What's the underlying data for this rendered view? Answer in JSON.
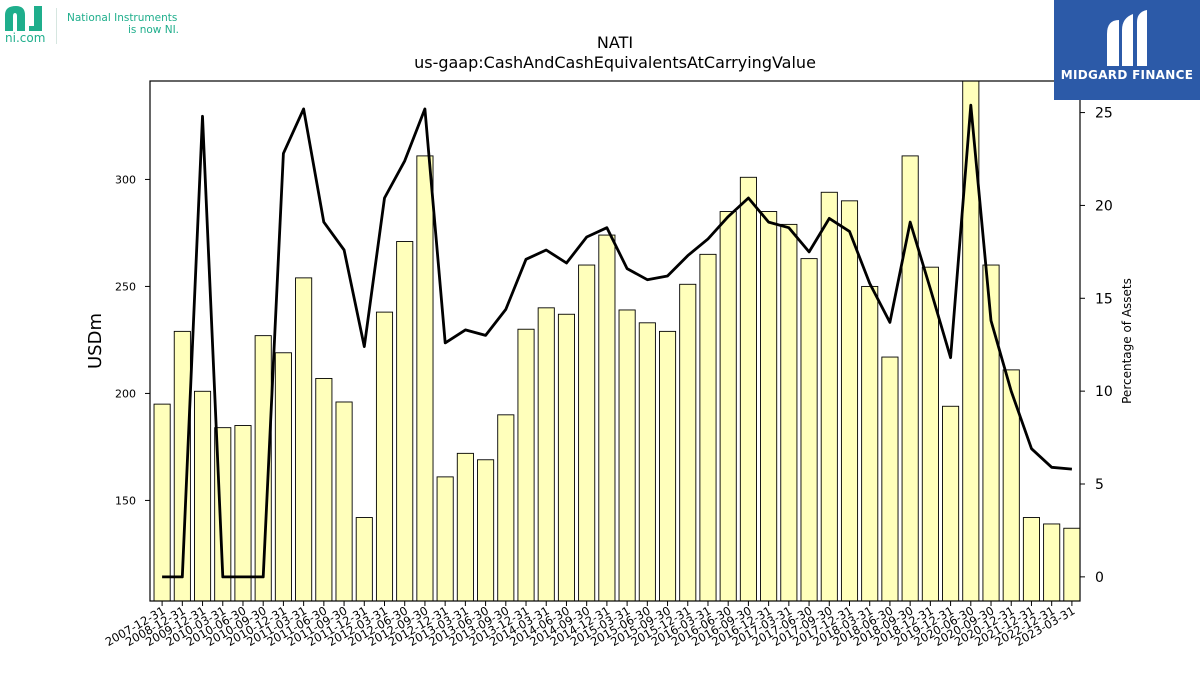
{
  "logos": {
    "ni": {
      "url_text": "ni.com",
      "tagline_line1": "National Instruments",
      "tagline_line2": "is now NI.",
      "color": "#1fae8c"
    },
    "midgard": {
      "text": "MIDGARD FINANCE",
      "bg_color": "#2c5aa8"
    }
  },
  "chart_data": {
    "type": "bar",
    "title": "NATI",
    "subtitle": "us-gaap:CashAndCashEquivalentsAtCarryingValue",
    "ylabel": "USDm",
    "y2label": "Percentage of Assets",
    "categories": [
      "2007-12-31",
      "2008-12-31",
      "2009-12-31",
      "2010-03-31",
      "2010-06-30",
      "2010-09-30",
      "2010-12-31",
      "2011-03-31",
      "2011-06-30",
      "2011-09-30",
      "2011-12-31",
      "2012-03-31",
      "2012-06-30",
      "2012-09-30",
      "2012-12-31",
      "2013-03-31",
      "2013-06-30",
      "2013-09-30",
      "2013-12-31",
      "2014-03-31",
      "2014-06-30",
      "2014-09-30",
      "2014-12-31",
      "2015-03-31",
      "2015-06-30",
      "2015-09-30",
      "2015-12-31",
      "2016-03-31",
      "2016-06-30",
      "2016-09-30",
      "2016-12-31",
      "2017-03-31",
      "2017-06-30",
      "2017-09-30",
      "2017-12-31",
      "2018-03-31",
      "2018-06-30",
      "2018-09-30",
      "2018-12-31",
      "2019-12-31",
      "2020-06-30",
      "2020-09-30",
      "2020-12-31",
      "2021-12-31",
      "2022-12-31",
      "2023-03-31"
    ],
    "series": [
      {
        "type": "bar",
        "axis": "left",
        "color": "#ffffbb",
        "values": [
          195,
          229,
          201,
          184,
          185,
          227,
          219,
          254,
          207,
          196,
          142,
          238,
          271,
          311,
          161,
          172,
          169,
          190,
          230,
          240,
          237,
          260,
          274,
          239,
          233,
          229,
          251,
          265,
          285,
          301,
          285,
          279,
          263,
          294,
          290,
          250,
          217,
          311,
          259,
          194,
          352,
          260,
          211,
          142,
          139,
          137
        ]
      },
      {
        "type": "line",
        "axis": "right",
        "color": "#000000",
        "values": [
          0.0,
          0.0,
          24.8,
          0.0,
          0.0,
          0.0,
          22.8,
          25.2,
          19.1,
          17.6,
          12.4,
          20.4,
          22.4,
          25.2,
          12.6,
          13.3,
          13.0,
          14.4,
          17.1,
          17.6,
          16.9,
          18.3,
          18.8,
          16.6,
          16.0,
          16.2,
          17.3,
          18.2,
          19.4,
          20.4,
          19.1,
          18.8,
          17.5,
          19.3,
          18.6,
          15.8,
          13.7,
          19.1,
          15.5,
          11.8,
          25.4,
          13.8,
          10.0,
          6.9,
          5.9,
          5.8
        ]
      }
    ],
    "yticks": [
      150,
      200,
      250,
      300
    ],
    "y2ticks": [
      0,
      5,
      10,
      15,
      20,
      25
    ],
    "ylim": [
      103,
      346
    ],
    "y2lim": [
      -1.3,
      26.7
    ],
    "grid": false
  }
}
